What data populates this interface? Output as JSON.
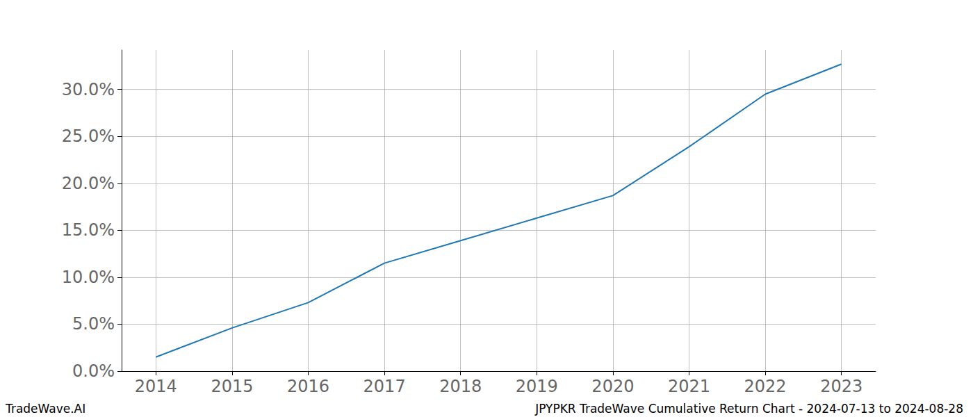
{
  "chart_data": {
    "type": "line",
    "title": "JPYPKR TradeWave Cumulative Return Chart - 2024-07-13 to 2024-08-28",
    "source": "TradeWave.AI",
    "x": [
      2014,
      2015,
      2016,
      2017,
      2018,
      2019,
      2020,
      2021,
      2022,
      2023
    ],
    "values": [
      1.5,
      4.6,
      7.3,
      11.5,
      13.9,
      16.3,
      18.7,
      23.9,
      29.5,
      32.7
    ],
    "color": "#1f77b4",
    "xlim": [
      2013.55,
      2023.45
    ],
    "xticks": [
      2014,
      2015,
      2016,
      2017,
      2018,
      2019,
      2020,
      2021,
      2022,
      2023
    ],
    "ylim": [
      0,
      34.2
    ],
    "yticks": [
      {
        "value": 0,
        "label": "0.0%"
      },
      {
        "value": 5,
        "label": "5.0%"
      },
      {
        "value": 10,
        "label": "10.0%"
      },
      {
        "value": 15,
        "label": "15.0%"
      },
      {
        "value": 20,
        "label": "20.0%"
      },
      {
        "value": 25,
        "label": "25.0%"
      },
      {
        "value": 30,
        "label": "30.0%"
      }
    ],
    "grid": true
  }
}
